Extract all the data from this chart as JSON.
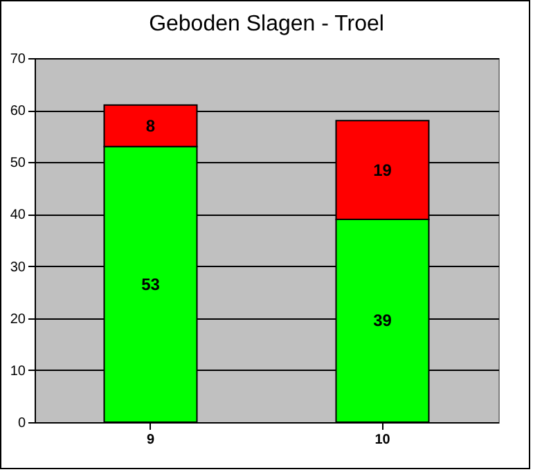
{
  "chart_data": {
    "type": "bar",
    "title": "Geboden Slagen - Troel",
    "categories": [
      "9",
      "10"
    ],
    "stacked": true,
    "data_labels": true,
    "grid": "y",
    "ylim": [
      0,
      70
    ],
    "yticks": [
      0,
      10,
      20,
      30,
      40,
      50,
      60,
      70
    ],
    "series": [
      {
        "color": "#00ff00",
        "values": [
          53,
          39
        ]
      },
      {
        "color": "#ff0000",
        "values": [
          8,
          19
        ]
      }
    ]
  }
}
